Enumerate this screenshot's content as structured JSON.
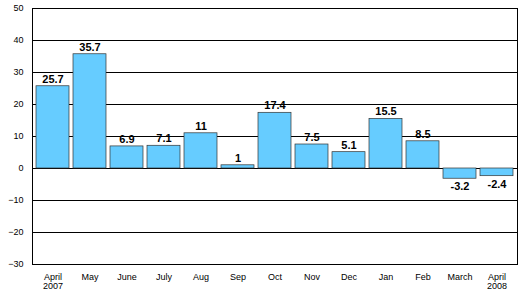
{
  "chart_data": {
    "type": "bar",
    "categories": [
      "April 2007",
      "May",
      "June",
      "July",
      "Aug",
      "Sep",
      "Oct",
      "Nov",
      "Dec",
      "Jan",
      "Feb",
      "March",
      "April 2008"
    ],
    "values": [
      25.7,
      35.7,
      6.9,
      7.1,
      11,
      1,
      17.4,
      7.5,
      5.1,
      15.5,
      8.5,
      -3.2,
      -2.4
    ],
    "color": "#66ccff",
    "ylim": [
      -30,
      50
    ],
    "yticks": [
      -30,
      -20,
      -10,
      0,
      10,
      20,
      30,
      40,
      50
    ],
    "grid": true,
    "data_labels": true
  }
}
